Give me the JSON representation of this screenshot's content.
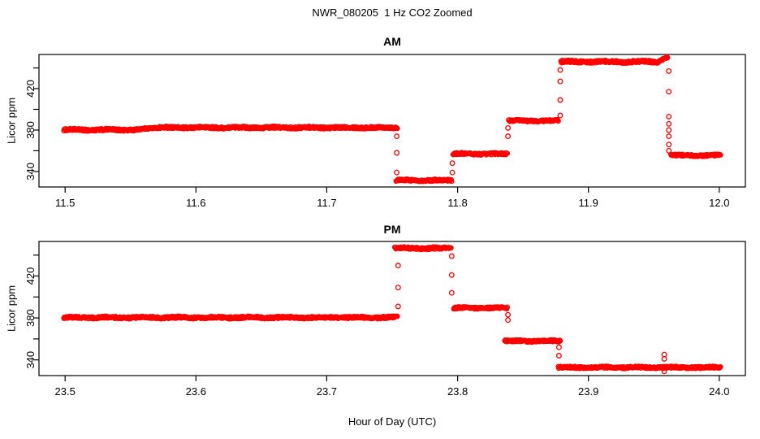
{
  "title": "NWR_080205  1 Hz CO2 Zoomed",
  "xlabel": "Hour of Day (UTC)",
  "ylabel": "Licor ppm",
  "colors": {
    "points": "#ff0000",
    "axis": "#000000",
    "background": "#ffffff"
  },
  "chart_data": {
    "type": "scatter",
    "title": "NWR_080205  1 Hz CO2 Zoomed",
    "xlabel": "Hour of Day (UTC)",
    "ylabel": "Licor ppm",
    "marker": "open-circle",
    "point_color": "#ff0000",
    "grid": false,
    "legend": "none",
    "panels": [
      {
        "title": "AM",
        "xlim": [
          11.48,
          12.02
        ],
        "ylim": [
          325,
          453
        ],
        "xticks": [
          {
            "v": 11.5,
            "label": "11.5"
          },
          {
            "v": 11.6,
            "label": "11.6"
          },
          {
            "v": 11.7,
            "label": "11.7"
          },
          {
            "v": 11.8,
            "label": "11.8"
          },
          {
            "v": 11.9,
            "label": "11.9"
          },
          {
            "v": 12.0,
            "label": "12.0"
          }
        ],
        "yticks": [
          {
            "v": 340,
            "label": "340"
          },
          {
            "v": 360,
            "label": ""
          },
          {
            "v": 380,
            "label": "380"
          },
          {
            "v": 400,
            "label": ""
          },
          {
            "v": 420,
            "label": "420"
          },
          {
            "v": 440,
            "label": ""
          }
        ],
        "plateaus": [
          {
            "x0": 11.499,
            "x1": 11.553,
            "v0": 380.2,
            "v1": 380.2,
            "noise": 1.0
          },
          {
            "x0": 11.553,
            "x1": 11.572,
            "v0": 380.2,
            "v1": 382.5,
            "noise": 0.8
          },
          {
            "x0": 11.572,
            "x1": 11.754,
            "v0": 382.4,
            "v1": 382.4,
            "noise": 1.0
          },
          {
            "x0": 11.753,
            "x1": 11.7955,
            "v0": 331.5,
            "v1": 331.5,
            "noise": 0.9
          },
          {
            "x0": 11.7965,
            "x1": 11.838,
            "v0": 357.0,
            "v1": 357.0,
            "noise": 0.9
          },
          {
            "x0": 11.839,
            "x1": 11.877,
            "v0": 389.0,
            "v1": 389.0,
            "noise": 0.9
          },
          {
            "x0": 11.879,
            "x1": 11.954,
            "v0": 446.0,
            "v1": 446.0,
            "noise": 1.1
          },
          {
            "x0": 11.954,
            "x1": 11.9605,
            "v0": 446.5,
            "v1": 450.0,
            "noise": 0.7
          },
          {
            "x0": 11.963,
            "x1": 12.001,
            "v0": 355.5,
            "v1": 355.5,
            "noise": 0.9
          }
        ],
        "transitions": [
          {
            "x": 11.7535,
            "values": [
              374,
              358,
              339
            ]
          },
          {
            "x": 11.796,
            "values": [
              348,
              339
            ]
          },
          {
            "x": 11.8385,
            "values": [
              374,
              382
            ]
          },
          {
            "x": 11.8785,
            "values": [
              394,
              409,
              427,
              438
            ]
          },
          {
            "x": 11.9615,
            "values": [
              437,
              417,
              393,
              386,
              380,
              374,
              366,
              360
            ]
          }
        ]
      },
      {
        "title": "PM",
        "xlim": [
          23.48,
          24.02
        ],
        "ylim": [
          325,
          453
        ],
        "xticks": [
          {
            "v": 23.5,
            "label": "23.5"
          },
          {
            "v": 23.6,
            "label": "23.6"
          },
          {
            "v": 23.7,
            "label": "23.7"
          },
          {
            "v": 23.8,
            "label": "23.8"
          },
          {
            "v": 23.9,
            "label": "23.9"
          },
          {
            "v": 24.0,
            "label": "24.0"
          }
        ],
        "yticks": [
          {
            "v": 340,
            "label": "340"
          },
          {
            "v": 360,
            "label": ""
          },
          {
            "v": 380,
            "label": "380"
          },
          {
            "v": 400,
            "label": ""
          },
          {
            "v": 420,
            "label": "420"
          },
          {
            "v": 440,
            "label": ""
          }
        ],
        "plateaus": [
          {
            "x0": 23.499,
            "x1": 23.754,
            "v0": 380.4,
            "v1": 380.4,
            "noise": 1.0
          },
          {
            "x0": 23.752,
            "x1": 23.795,
            "v0": 446.5,
            "v1": 446.5,
            "noise": 1.1
          },
          {
            "x0": 23.797,
            "x1": 23.838,
            "v0": 389.5,
            "v1": 389.5,
            "noise": 0.9
          },
          {
            "x0": 23.836,
            "x1": 23.8785,
            "v0": 358.0,
            "v1": 358.0,
            "noise": 0.9
          },
          {
            "x0": 23.877,
            "x1": 24.001,
            "v0": 332.8,
            "v1": 332.8,
            "noise": 0.9
          }
        ],
        "transitions": [
          {
            "x": 23.7545,
            "values": [
              391,
              409,
              430
            ]
          },
          {
            "x": 23.7955,
            "values": [
              439,
              421,
              404
            ]
          },
          {
            "x": 23.8385,
            "values": [
              383,
              378
            ]
          },
          {
            "x": 23.8775,
            "values": [
              352,
              344
            ]
          },
          {
            "x": 23.958,
            "values": [
              345,
              341,
              329
            ]
          }
        ]
      }
    ]
  }
}
